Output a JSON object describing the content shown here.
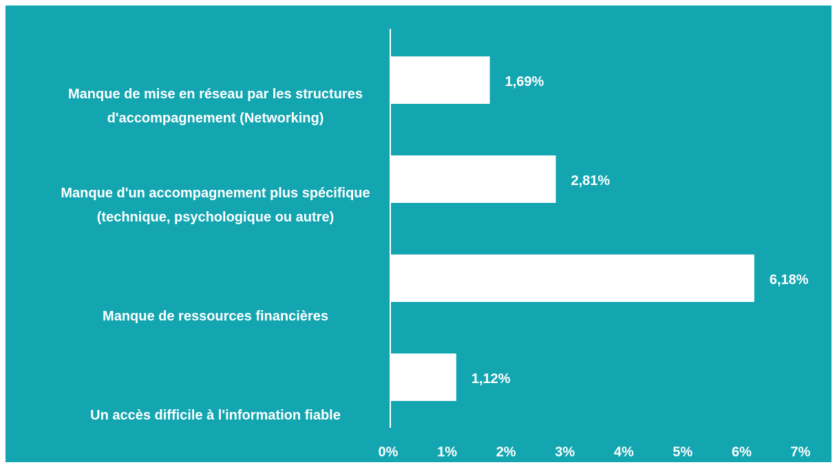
{
  "chart_data": {
    "type": "hbar",
    "categories": [
      "Manque de mise en réseau par les structures d'accompagnement (Networking)",
      "Manque d'un accompagnement plus spécifique (technique, psychologique ou autre)",
      "Manque de ressources financières",
      "Un accès difficile à l'information fiable"
    ],
    "values": [
      1.69,
      2.81,
      6.18,
      1.12
    ],
    "value_labels": [
      "1,69%",
      "2,81%",
      "6,18%",
      "1,12%"
    ],
    "color": "#ffffff",
    "background": "#13a6b1",
    "xlim": [
      0,
      7
    ],
    "xticks": [
      {
        "value": 0,
        "label": "0%"
      },
      {
        "value": 1,
        "label": "1%"
      },
      {
        "value": 2,
        "label": "2%"
      },
      {
        "value": 3,
        "label": "3%"
      },
      {
        "value": 4,
        "label": "4%"
      },
      {
        "value": 5,
        "label": "5%"
      },
      {
        "value": 6,
        "label": "6%"
      },
      {
        "value": 7,
        "label": "7%"
      }
    ]
  }
}
